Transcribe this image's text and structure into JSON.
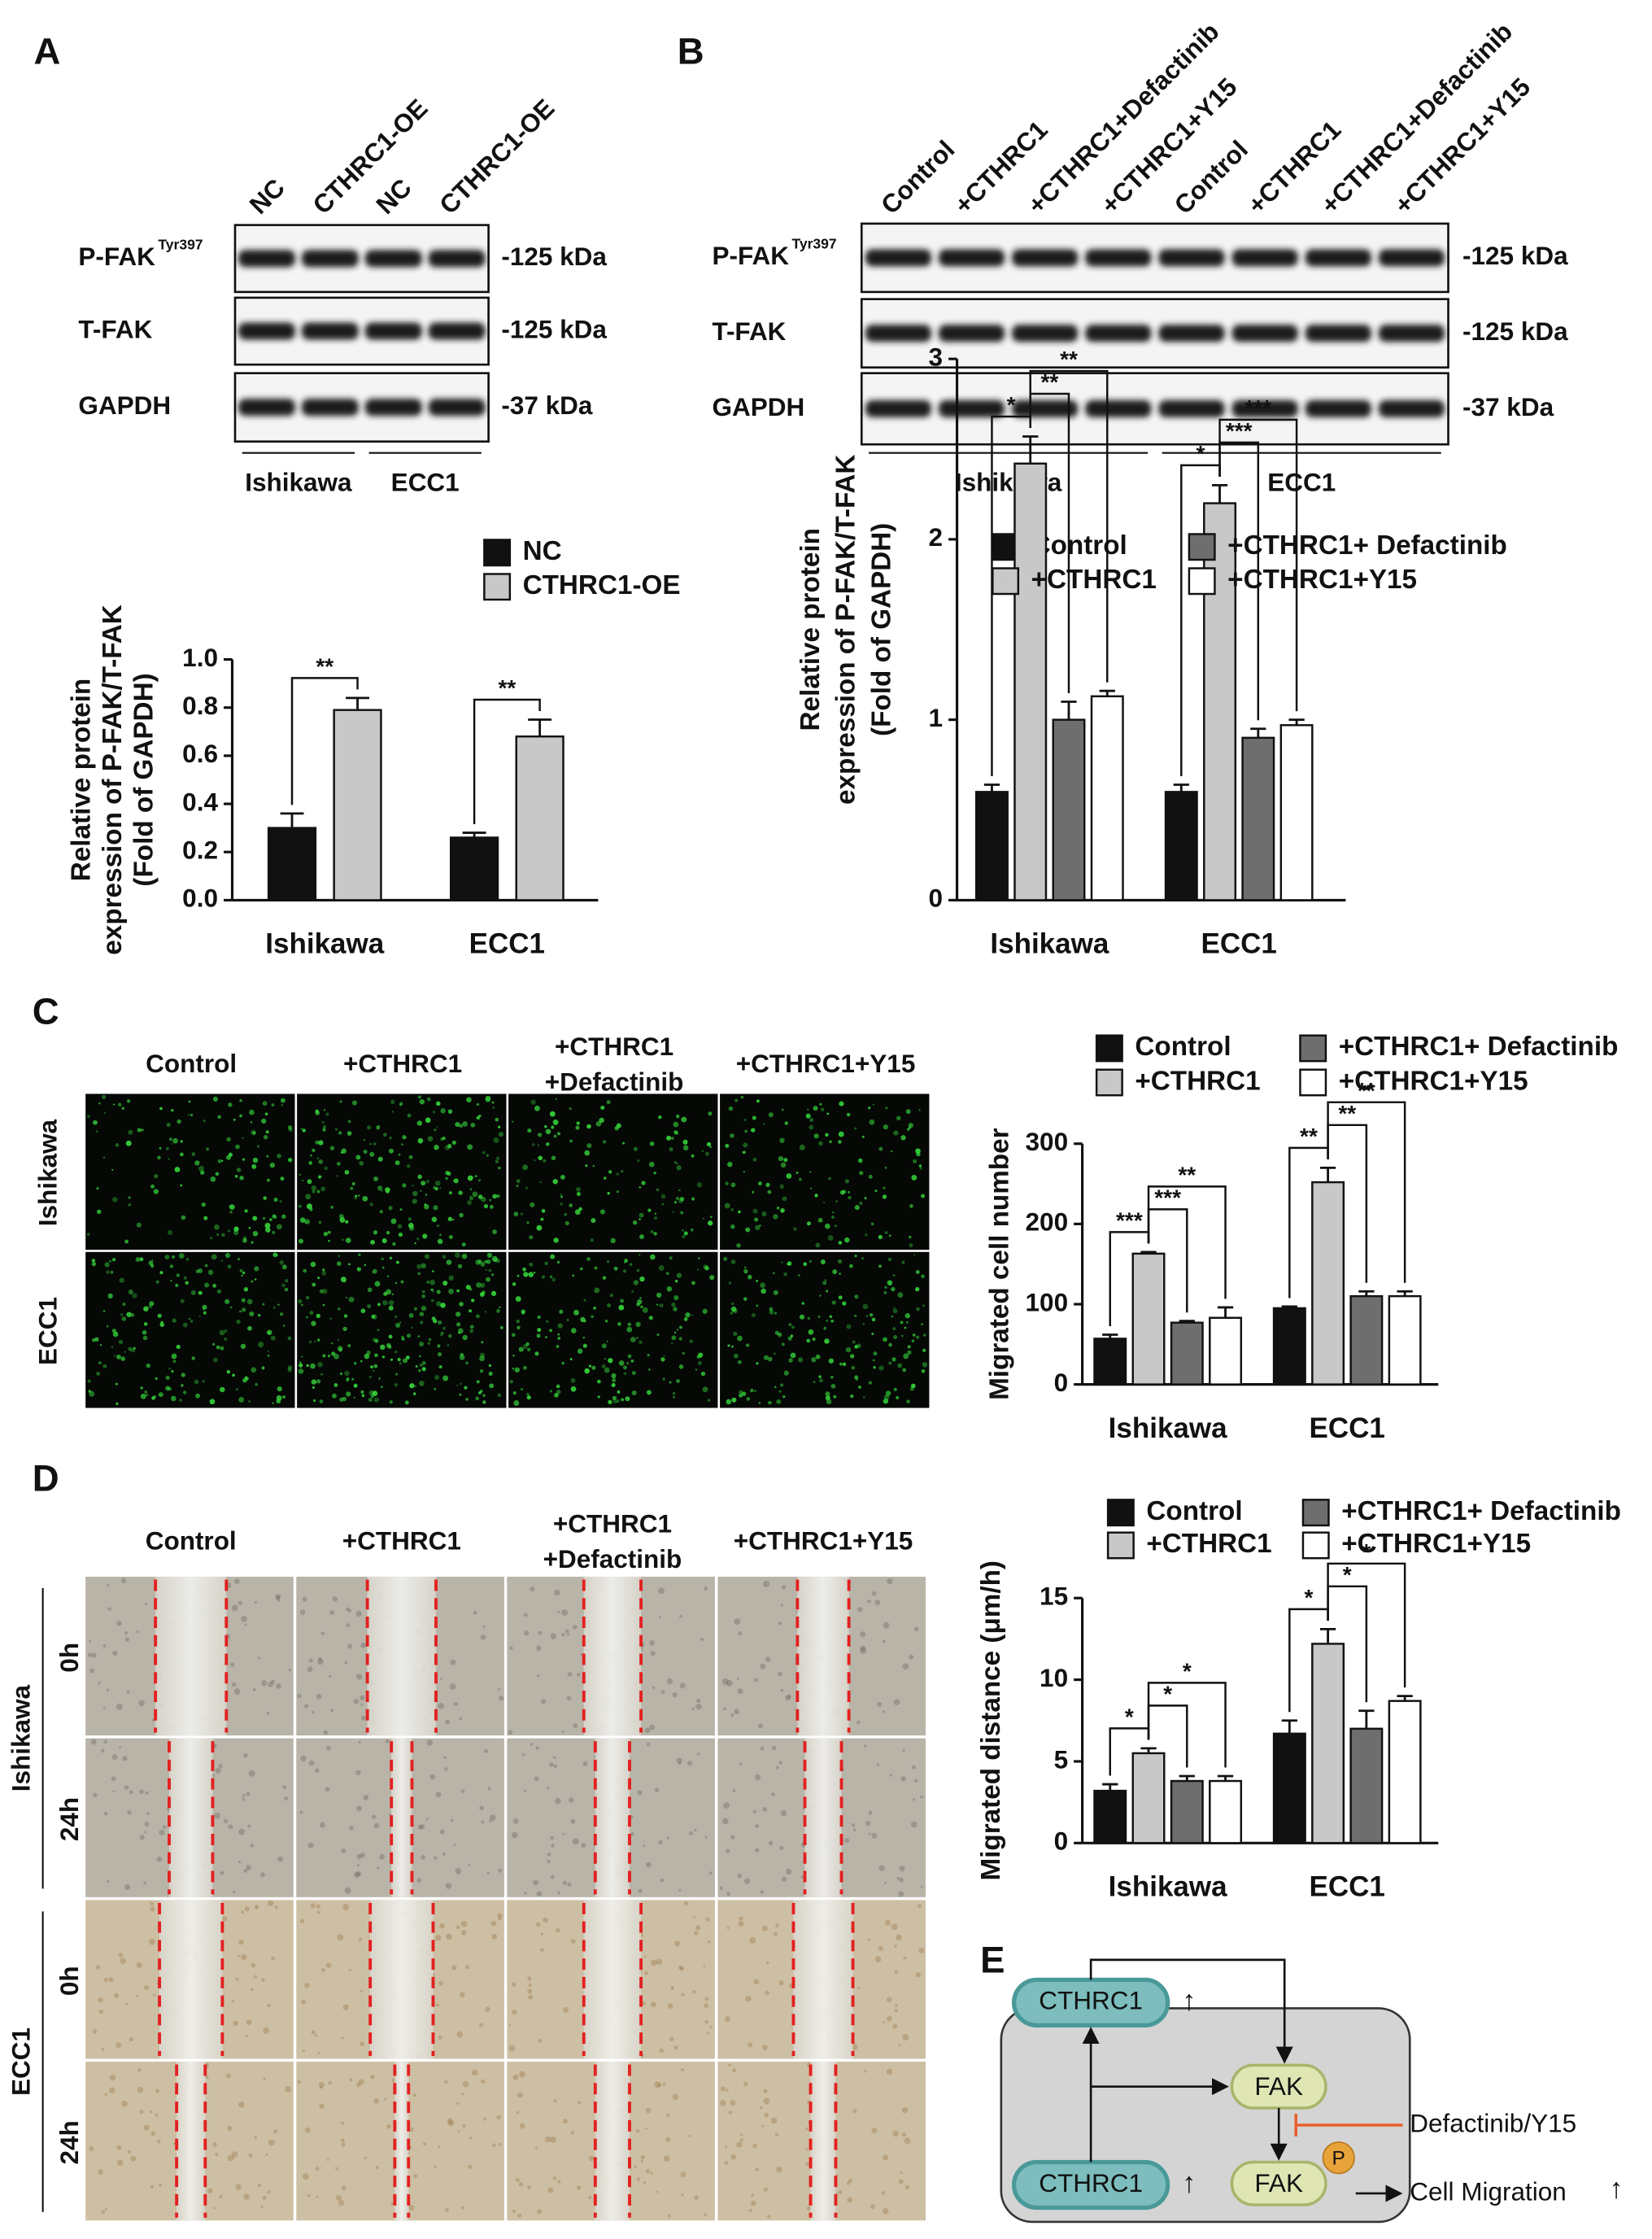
{
  "panel_labels": [
    "A",
    "B",
    "C",
    "D",
    "E"
  ],
  "blots": [
    {
      "lanes": [
        "NC",
        "CTHRC1-OE",
        "NC",
        "CTHRC1-OE"
      ],
      "rows": [
        {
          "label": "P-FAK",
          "sup": "Tyr397",
          "size": "-125 kDa"
        },
        {
          "label": "T-FAK",
          "size": "-125 kDa"
        },
        {
          "label": "GAPDH",
          "size": "-37 kDa"
        }
      ],
      "groups": [
        "Ishikawa",
        "ECC1"
      ]
    },
    {
      "lanes": [
        "Control",
        "+CTHRC1",
        "+CTHRC1+Defactinib",
        "+CTHRC1+Y15",
        "Control",
        "+CTHRC1",
        "+CTHRC1+Defactinib",
        "+CTHRC1+Y15"
      ],
      "rows": [
        {
          "label": "P-FAK",
          "sup": "Tyr397",
          "size": "-125 kDa"
        },
        {
          "label": "T-FAK",
          "size": "-125 kDa"
        },
        {
          "label": "GAPDH",
          "size": "-37 kDa"
        }
      ],
      "groups": [
        "Ishikawa",
        "ECC1"
      ]
    }
  ],
  "migration_images": {
    "columns": [
      "Control",
      "+CTHRC1",
      [
        "+CTHRC1",
        "+Defactinib"
      ],
      "+CTHRC1+Y15"
    ],
    "rows": [
      "Ishikawa",
      "ECC1"
    ]
  },
  "wound_images": {
    "columns": [
      "Control",
      "+CTHRC1",
      [
        "+CTHRC1",
        "+Defactinib"
      ],
      "+CTHRC1+Y15"
    ],
    "groups": [
      "Ishikawa",
      "ECC1"
    ],
    "times": [
      "0h",
      "24h"
    ]
  },
  "diagram": {
    "nodes": [
      "CTHRC1",
      "FAK",
      "FAK",
      "P",
      "CTHRC1"
    ],
    "inhibitor": "Defactinib/Y15",
    "outcome": "Cell Migration",
    "up": "↑"
  },
  "chart_data": [
    {
      "type": "bar",
      "ylabel": [
        "Relative protein",
        "expression of P-FAK/T-FAK",
        "(Fold of GAPDH)"
      ],
      "categories": [
        "Ishikawa",
        "ECC1"
      ],
      "series": [
        {
          "name": "NC",
          "color": "#111111",
          "values": [
            0.3,
            0.26
          ],
          "errors": [
            0.06,
            0.02
          ]
        },
        {
          "name": "CTHRC1-OE",
          "color": "#c8c8c8",
          "values": [
            0.79,
            0.68
          ],
          "errors": [
            0.05,
            0.07
          ]
        }
      ],
      "ylim": [
        0,
        1
      ],
      "yticks": [
        {
          "value": 0,
          "label": "0.0"
        },
        0.2,
        0.4,
        0.6,
        0.8,
        {
          "value": 1,
          "label": "1.0"
        }
      ],
      "annotations": [
        {
          "text": "**",
          "group": 0,
          "from": 0,
          "to": 1
        },
        {
          "text": "**",
          "group": 1,
          "from": 0,
          "to": 1
        }
      ]
    },
    {
      "type": "bar",
      "ylabel": [
        "Relative protein",
        "expression of P-FAK/T-FAK",
        "(Fold of GAPDH)"
      ],
      "categories": [
        "Ishikawa",
        "ECC1"
      ],
      "series": [
        {
          "name": "Control",
          "color": "#111111",
          "values": [
            0.6,
            0.6
          ],
          "errors": [
            0.04,
            0.04
          ]
        },
        {
          "name": "+CTHRC1",
          "color": "#c8c8c8",
          "values": [
            2.42,
            2.2
          ],
          "errors": [
            0.15,
            0.1
          ]
        },
        {
          "name": "+CTHRC1+ Defactinib",
          "color": "#6e6e6e",
          "values": [
            1.0,
            0.9
          ],
          "errors": [
            0.1,
            0.05
          ]
        },
        {
          "name": "+CTHRC1+Y15",
          "color": "#ffffff",
          "values": [
            1.13,
            0.97
          ],
          "errors": [
            0.03,
            0.03
          ]
        }
      ],
      "ylim": [
        0,
        3
      ],
      "yticks": [
        0,
        1,
        2,
        3
      ],
      "annotations": [
        {
          "text": "*",
          "group": 0,
          "from": 0,
          "to": 1
        },
        {
          "text": "**",
          "group": 0,
          "from": 1,
          "to": 2
        },
        {
          "text": "**",
          "group": 0,
          "from": 1,
          "to": 3
        },
        {
          "text": "*",
          "group": 1,
          "from": 0,
          "to": 1
        },
        {
          "text": "***",
          "group": 1,
          "from": 1,
          "to": 2
        },
        {
          "text": "***",
          "group": 1,
          "from": 1,
          "to": 3
        }
      ]
    },
    {
      "type": "bar",
      "ylabel": [
        "Migrated cell number"
      ],
      "categories": [
        "Ishikawa",
        "ECC1"
      ],
      "series": [
        {
          "name": "Control",
          "color": "#111111",
          "values": [
            57,
            95
          ],
          "errors": [
            5,
            2
          ]
        },
        {
          "name": "+CTHRC1",
          "color": "#c8c8c8",
          "values": [
            163,
            252
          ],
          "errors": [
            2,
            18
          ]
        },
        {
          "name": "+CTHRC1+ Defactinib",
          "color": "#6e6e6e",
          "values": [
            77,
            110
          ],
          "errors": [
            2,
            6
          ]
        },
        {
          "name": "+CTHRC1+Y15",
          "color": "#ffffff",
          "values": [
            83,
            110
          ],
          "errors": [
            13,
            6
          ]
        }
      ],
      "ylim": [
        0,
        300
      ],
      "yticks": [
        0,
        100,
        200,
        300
      ],
      "annotations": [
        {
          "text": "***",
          "group": 0,
          "from": 0,
          "to": 1
        },
        {
          "text": "***",
          "group": 0,
          "from": 1,
          "to": 2
        },
        {
          "text": "**",
          "group": 0,
          "from": 1,
          "to": 3
        },
        {
          "text": "**",
          "group": 1,
          "from": 0,
          "to": 1
        },
        {
          "text": "**",
          "group": 1,
          "from": 1,
          "to": 2
        },
        {
          "text": "**",
          "group": 1,
          "from": 1,
          "to": 3
        }
      ]
    },
    {
      "type": "bar",
      "ylabel": [
        "Migrated distance (μm/h)"
      ],
      "categories": [
        "Ishikawa",
        "ECC1"
      ],
      "series": [
        {
          "name": "Control",
          "color": "#111111",
          "values": [
            3.2,
            6.7
          ],
          "errors": [
            0.4,
            0.8
          ]
        },
        {
          "name": "+CTHRC1",
          "color": "#c8c8c8",
          "values": [
            5.5,
            12.2
          ],
          "errors": [
            0.3,
            0.9
          ]
        },
        {
          "name": "+CTHRC1+ Defactinib",
          "color": "#6e6e6e",
          "values": [
            3.8,
            7.0
          ],
          "errors": [
            0.3,
            1.1
          ]
        },
        {
          "name": "+CTHRC1+Y15",
          "color": "#ffffff",
          "values": [
            3.8,
            8.7
          ],
          "errors": [
            0.3,
            0.3
          ]
        }
      ],
      "ylim": [
        0,
        15
      ],
      "yticks": [
        0,
        5,
        10,
        15
      ],
      "annotations": [
        {
          "text": "*",
          "group": 0,
          "from": 0,
          "to": 1
        },
        {
          "text": "*",
          "group": 0,
          "from": 1,
          "to": 2
        },
        {
          "text": "*",
          "group": 0,
          "from": 1,
          "to": 3
        },
        {
          "text": "*",
          "group": 1,
          "from": 0,
          "to": 1
        },
        {
          "text": "*",
          "group": 1,
          "from": 1,
          "to": 2
        },
        {
          "text": "*",
          "group": 1,
          "from": 1,
          "to": 3
        }
      ]
    }
  ]
}
